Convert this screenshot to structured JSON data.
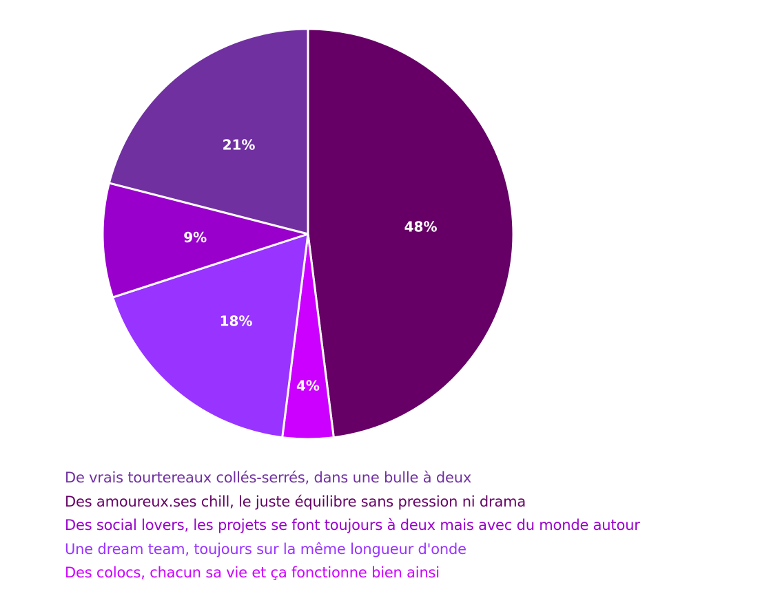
{
  "chart_data": {
    "type": "pie",
    "title": "",
    "slices": [
      {
        "label": "Des amoureux.ses chill, le juste équilibre sans pression ni drama",
        "value": 48,
        "display": "48%",
        "color": "#660066"
      },
      {
        "label": "Des colocs, chacun sa vie et ça fonctionne bien ainsi",
        "value": 4,
        "display": "4%",
        "color": "#cc00ff"
      },
      {
        "label": "Une dream team, toujours sur la même longueur d'onde",
        "value": 18,
        "display": "18%",
        "color": "#9933ff"
      },
      {
        "label": "Des social lovers, les projets se font toujours à deux mais avec du monde autour",
        "value": 9,
        "display": "9%",
        "color": "#9900cc"
      },
      {
        "label": "De vrais tourtereaux collés-serrés, dans une bulle à deux",
        "value": 21,
        "display": "21%",
        "color": "#7030a0"
      }
    ],
    "legend": {
      "placement": "bottom-left",
      "entries": [
        {
          "label": "De vrais tourtereaux collés-serrés, dans une bulle à deux",
          "color": "#7030a0"
        },
        {
          "label": "Des amoureux.ses chill, le juste équilibre sans pression ni drama",
          "color": "#660066"
        },
        {
          "label": "Des social lovers, les projets se font toujours à deux mais avec du monde autour",
          "color": "#9900cc"
        },
        {
          "label": "Une dream team, toujours sur la même longueur d'onde",
          "color": "#9933ff"
        },
        {
          "label": "Des colocs, chacun sa vie et ça fonctionne bien ainsi",
          "color": "#cc00ff"
        }
      ]
    }
  }
}
